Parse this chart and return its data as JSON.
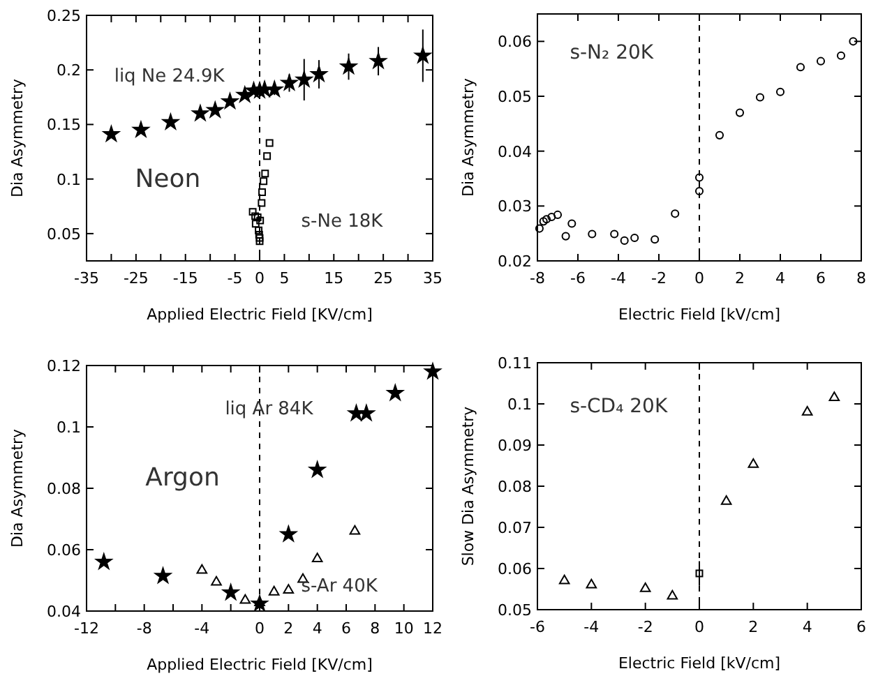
{
  "chart_data": [
    {
      "type": "scatter",
      "xlabel": "Applied Electric Field [KV/cm]",
      "ylabel": "Dia Asymmetry",
      "xlim": [
        -35,
        35
      ],
      "ylim": [
        0.025,
        0.25
      ],
      "xticks": [
        -35,
        {
          "value": -30,
          "label": null
        },
        -25,
        {
          "value": -20,
          "label": null
        },
        -15,
        {
          "value": -10,
          "label": null
        },
        -5,
        0,
        5,
        {
          "value": 10,
          "label": null
        },
        15,
        {
          "value": 20,
          "label": null
        },
        25,
        {
          "value": 30,
          "label": null
        },
        35
      ],
      "yticks": [
        0.05,
        0.1,
        0.15,
        0.2,
        0.25
      ],
      "ref_lines": [
        {
          "axis": "x",
          "value": 0,
          "line_style": "dashed"
        }
      ],
      "annotations": [
        "liq Ne 24.9K",
        "Neon",
        "s-Ne 18K"
      ],
      "series": [
        {
          "marker": "star",
          "color": "#000000",
          "x": [
            -30,
            -24,
            -18,
            -12,
            -9,
            -6,
            -3,
            -1.2,
            0,
            1,
            3,
            6,
            9,
            12,
            18,
            24,
            33
          ],
          "values": [
            0.141,
            0.145,
            0.152,
            0.16,
            0.163,
            0.171,
            0.177,
            0.181,
            0.181,
            0.182,
            0.182,
            0.188,
            0.191,
            0.196,
            0.203,
            0.208,
            0.213
          ],
          "errors": [
            null,
            null,
            null,
            null,
            null,
            null,
            null,
            null,
            null,
            null,
            0.005,
            0.008,
            0.019,
            0.013,
            0.012,
            0.013,
            0.024
          ]
        },
        {
          "marker": "square",
          "color": "#000000",
          "x": [
            2,
            1.5,
            1.1,
            0.8,
            0.5,
            0.4,
            -1.4,
            -0.9,
            -0.4,
            0.1,
            -0.8,
            -0.2,
            -0.1,
            0,
            0
          ],
          "values": [
            0.133,
            0.121,
            0.105,
            0.098,
            0.088,
            0.078,
            0.07,
            0.066,
            0.065,
            0.062,
            0.059,
            0.053,
            0.049,
            0.046,
            0.043
          ]
        }
      ]
    },
    {
      "type": "scatter",
      "xlabel": "Electric Field [kV/cm]",
      "ylabel": "Dia Asymmetry",
      "xlim": [
        -8,
        8
      ],
      "ylim": [
        0.02,
        0.065
      ],
      "xticks": [
        -8,
        -6,
        -4,
        -2,
        0,
        2,
        4,
        6,
        8
      ],
      "yticks": [
        0.02,
        0.03,
        0.04,
        0.05,
        0.06
      ],
      "ref_lines": [
        {
          "axis": "x",
          "value": 0,
          "line_style": "dashed"
        }
      ],
      "annotations": [
        "s-N₂ 20K"
      ],
      "series": [
        {
          "marker": "circle",
          "color": "#000000",
          "x": [
            -7.9,
            -7.7,
            -7.55,
            -7.3,
            -7,
            -6.6,
            -6.3,
            -5.3,
            -4.2,
            -3.7,
            -3.2,
            -2.2,
            -1.2,
            0,
            0,
            1,
            2,
            3,
            4,
            5,
            6,
            7,
            7.6
          ],
          "values": [
            0.0259,
            0.0272,
            0.0276,
            0.028,
            0.0284,
            0.0245,
            0.0268,
            0.0249,
            0.0249,
            0.0237,
            0.0242,
            0.0239,
            0.0286,
            0.0327,
            0.0352,
            0.0429,
            0.047,
            0.0498,
            0.0508,
            0.0553,
            0.0564,
            0.0574,
            0.06
          ]
        }
      ]
    },
    {
      "type": "scatter",
      "xlabel": "Applied Electric Field [KV/cm]",
      "ylabel": "Dia Asymmetry",
      "xlim": [
        -12,
        12
      ],
      "ylim": [
        0.04,
        0.12
      ],
      "xticks": [
        -12,
        {
          "value": -10,
          "label": null
        },
        -8,
        {
          "value": -6,
          "label": null
        },
        -4,
        {
          "value": -2,
          "label": null
        },
        0,
        2,
        4,
        6,
        8,
        10,
        12
      ],
      "yticks": [
        0.04,
        0.06,
        0.08,
        0.1,
        0.12
      ],
      "ref_lines": [
        {
          "axis": "x",
          "value": 0,
          "line_style": "dashed"
        }
      ],
      "annotations": [
        "liq Ar 84K",
        "Argon",
        "s-Ar 40K"
      ],
      "series": [
        {
          "marker": "star",
          "color": "#000000",
          "x": [
            -10.8,
            -6.7,
            -2,
            0,
            2,
            4,
            6.7,
            7.4,
            9.4,
            12
          ],
          "values": [
            0.056,
            0.0514,
            0.046,
            0.0424,
            0.065,
            0.086,
            0.1044,
            0.1044,
            0.111,
            0.118
          ]
        },
        {
          "marker": "triangle",
          "color": "#000000",
          "x": [
            -4,
            -3,
            -1,
            0,
            1,
            2,
            3,
            4,
            6.6
          ],
          "values": [
            0.0533,
            0.0494,
            0.0435,
            0.0427,
            0.0462,
            0.0468,
            0.0503,
            0.057,
            0.066
          ]
        }
      ]
    },
    {
      "type": "scatter",
      "xlabel": "Electric Field [kV/cm]",
      "ylabel": "Slow Dia Asymmetry",
      "xlim": [
        -6,
        6
      ],
      "ylim": [
        0.05,
        0.11
      ],
      "xticks": [
        -6,
        -4,
        -2,
        0,
        2,
        4,
        6
      ],
      "yticks": [
        0.05,
        0.06,
        0.07,
        0.08,
        0.09,
        0.1,
        0.11
      ],
      "ref_lines": [
        {
          "axis": "x",
          "value": 0,
          "line_style": "dashed"
        }
      ],
      "annotations": [
        "s-CD₄ 20K"
      ],
      "series": [
        {
          "marker": "triangle",
          "color": "#000000",
          "x": [
            -5,
            -4,
            -2,
            -1
          ],
          "values": [
            0.057,
            0.056,
            0.0551,
            0.0533
          ]
        },
        {
          "marker": "square",
          "color": "#000000",
          "x": [
            0
          ],
          "values": [
            0.0588
          ],
          "errors": [
            0.003
          ]
        },
        {
          "marker": "triangle",
          "color": "#000000",
          "x": [
            1,
            2,
            4,
            5
          ],
          "values": [
            0.0763,
            0.0853,
            0.098,
            0.1015
          ]
        }
      ]
    }
  ]
}
